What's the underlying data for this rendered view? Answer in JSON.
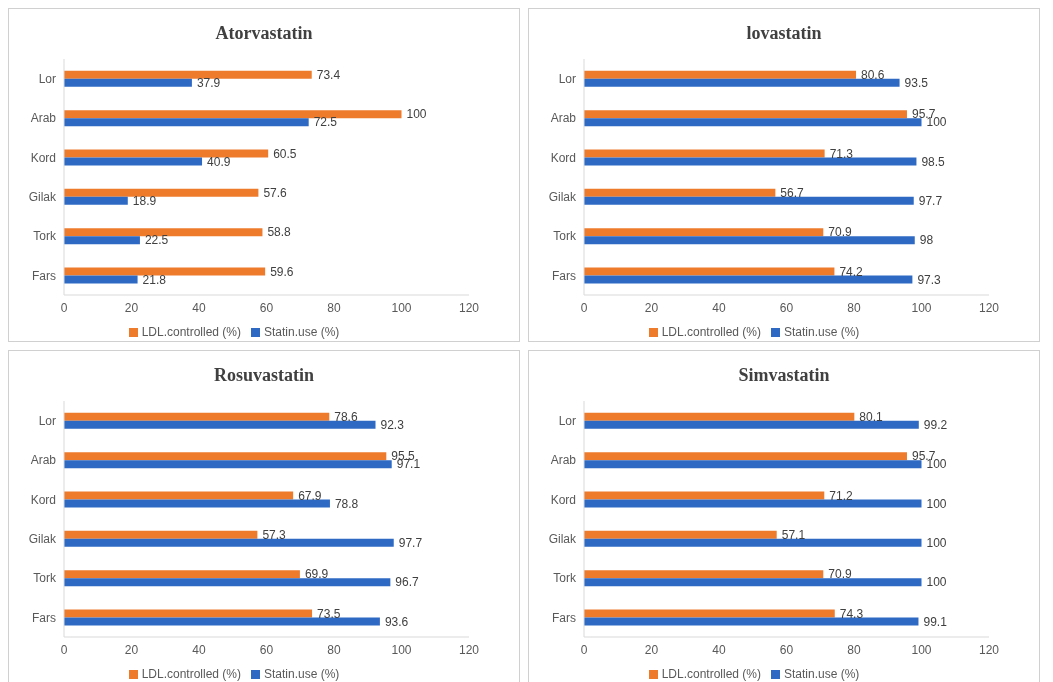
{
  "chart_data": [
    {
      "type": "bar",
      "orientation": "horizontal",
      "title": "Atorvastatin",
      "categories": [
        "Lor",
        "Arab",
        "Kord",
        "Gilak",
        "Tork",
        "Fars"
      ],
      "series": [
        {
          "name": "LDL.controlled (%)",
          "color": "#ee7b2c",
          "values": [
            73.4,
            100,
            60.5,
            57.6,
            58.8,
            59.6
          ]
        },
        {
          "name": "Statin.use (%)",
          "color": "#2e6ac4",
          "values": [
            37.9,
            72.5,
            40.9,
            18.9,
            22.5,
            21.8
          ]
        }
      ],
      "xlim": [
        0,
        120
      ],
      "xticks": [
        0,
        20,
        40,
        60,
        80,
        100,
        120
      ],
      "data_labels": true,
      "legend": "bottom"
    },
    {
      "type": "bar",
      "orientation": "horizontal",
      "title": "lovastatin",
      "categories": [
        "Lor",
        "Arab",
        "Kord",
        "Gilak",
        "Tork",
        "Fars"
      ],
      "series": [
        {
          "name": "LDL.controlled (%)",
          "color": "#ee7b2c",
          "values": [
            80.6,
            95.7,
            71.3,
            56.7,
            70.9,
            74.2
          ]
        },
        {
          "name": "Statin.use (%)",
          "color": "#2e6ac4",
          "values": [
            93.5,
            100,
            98.5,
            97.7,
            98,
            97.3
          ]
        }
      ],
      "xlim": [
        0,
        120
      ],
      "xticks": [
        0,
        20,
        40,
        60,
        80,
        100,
        120
      ],
      "data_labels": true,
      "legend": "bottom"
    },
    {
      "type": "bar",
      "orientation": "horizontal",
      "title": "Rosuvastatin",
      "categories": [
        "Lor",
        "Arab",
        "Kord",
        "Gilak",
        "Tork",
        "Fars"
      ],
      "series": [
        {
          "name": "LDL.controlled (%)",
          "color": "#ee7b2c",
          "values": [
            78.6,
            95.5,
            67.9,
            57.3,
            69.9,
            73.5
          ]
        },
        {
          "name": "Statin.use (%)",
          "color": "#2e6ac4",
          "values": [
            92.3,
            97.1,
            78.8,
            97.7,
            96.7,
            93.6
          ]
        }
      ],
      "xlim": [
        0,
        120
      ],
      "xticks": [
        0,
        20,
        40,
        60,
        80,
        100,
        120
      ],
      "data_labels": true,
      "legend": "bottom"
    },
    {
      "type": "bar",
      "orientation": "horizontal",
      "title": "Simvastatin",
      "categories": [
        "Lor",
        "Arab",
        "Kord",
        "Gilak",
        "Tork",
        "Fars"
      ],
      "series": [
        {
          "name": "LDL.controlled (%)",
          "color": "#ee7b2c",
          "values": [
            80.1,
            95.7,
            71.2,
            57.1,
            70.9,
            74.3
          ]
        },
        {
          "name": "Statin.use (%)",
          "color": "#2e6ac4",
          "values": [
            99.2,
            100,
            100,
            100,
            100,
            99.1
          ]
        }
      ],
      "xlim": [
        0,
        120
      ],
      "xticks": [
        0,
        20,
        40,
        60,
        80,
        100,
        120
      ],
      "data_labels": true,
      "legend": "bottom"
    }
  ]
}
